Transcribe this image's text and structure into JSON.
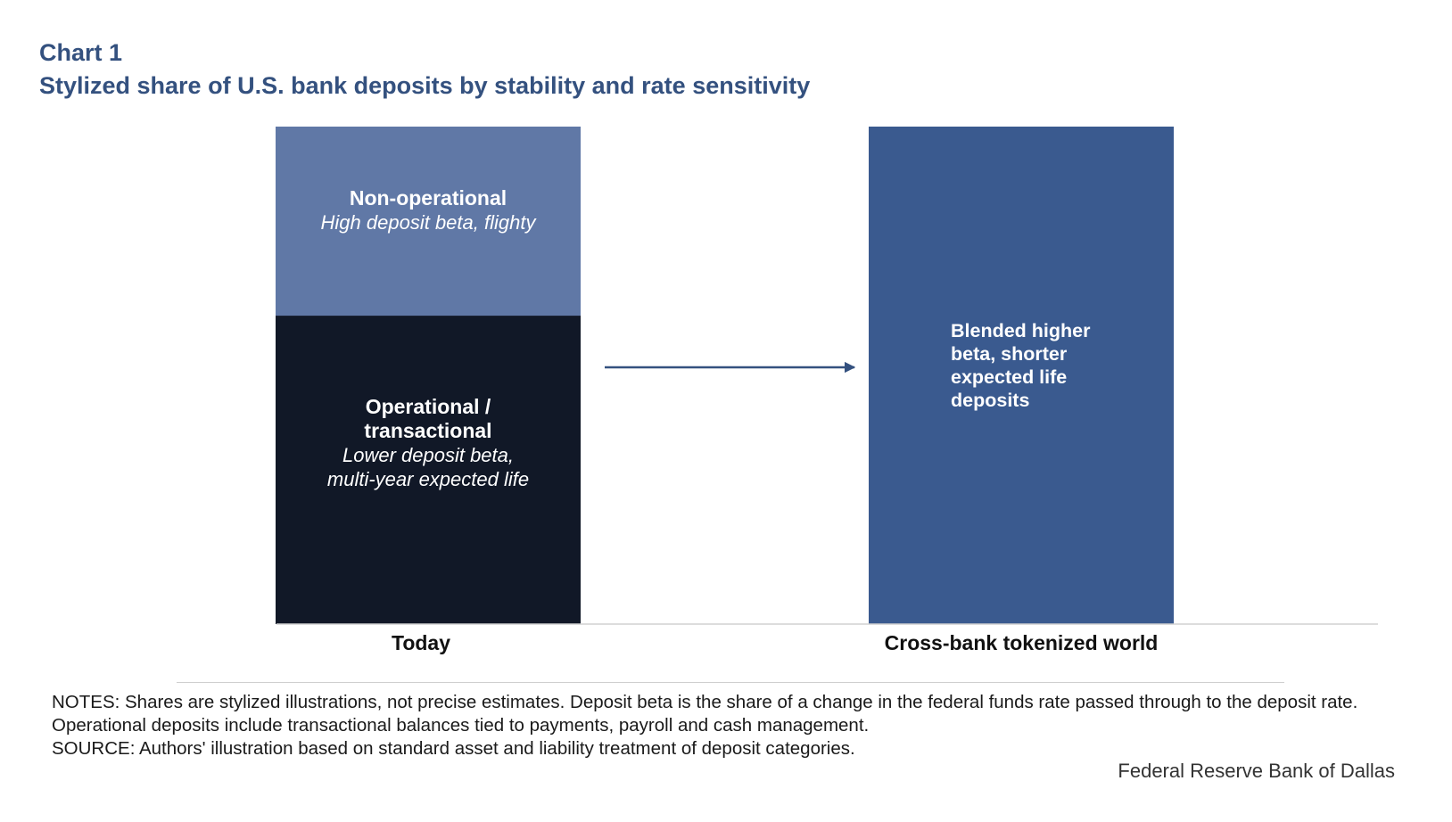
{
  "header": {
    "chart_label": "Chart 1",
    "title": "Stylized share of U.S. bank deposits by stability and rate sensitivity"
  },
  "chart_data": {
    "type": "bar",
    "stacked": true,
    "categories": [
      "Today",
      "Cross-bank tokenized world"
    ],
    "series": [
      {
        "key": "operational",
        "label_bold": [
          "Operational /",
          "transactional"
        ],
        "label_italic": [
          "Lower  deposit beta,",
          "multi-year expected life"
        ],
        "color": "#111827",
        "values": [
          62,
          0
        ]
      },
      {
        "key": "non_operational",
        "label_bold": [
          "Non-operational"
        ],
        "label_italic": [
          "High deposit beta,  flighty"
        ],
        "color": "#6078a6",
        "values": [
          38,
          0
        ]
      },
      {
        "key": "blended",
        "label_bold": [
          "Blended higher",
          "beta, shorter",
          "expected life",
          "deposits"
        ],
        "label_italic": [],
        "color": "#3a5a8f",
        "values": [
          0,
          100
        ]
      }
    ],
    "ylim": [
      0,
      100
    ],
    "arrow": {
      "from": "Today",
      "to": "Cross-bank tokenized world",
      "color": "#34517f"
    },
    "axis_color": "#d0d0d0",
    "grid": false
  },
  "footer": {
    "notes": "NOTES: Shares are stylized illustrations, not precise estimates. Deposit beta is the share of a change in the federal funds rate passed through to the deposit rate. Operational deposits include transactional balances tied to payments, payroll and cash management.",
    "source": "SOURCE: Authors' illustration based on standard asset and liability treatment of deposit categories.",
    "brand": "Federal Reserve Bank of Dallas"
  }
}
